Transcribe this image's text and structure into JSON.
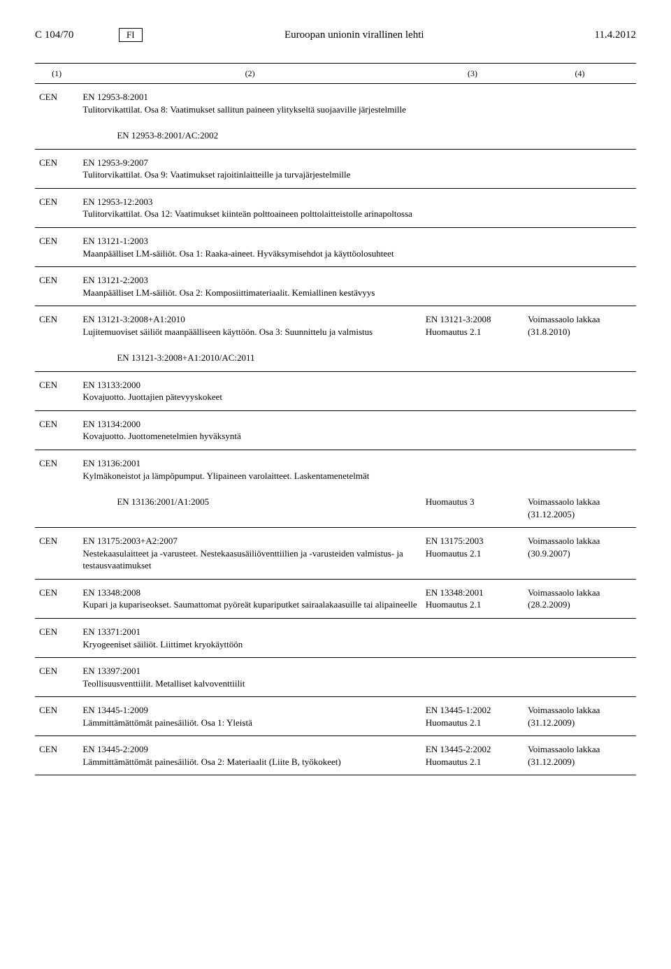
{
  "header": {
    "left": "C 104/70",
    "lang": "FI",
    "title": "Euroopan unionin virallinen lehti",
    "date": "11.4.2012"
  },
  "colheads": {
    "c1": "(1)",
    "c2": "(2)",
    "c3": "(3)",
    "c4": "(4)"
  },
  "rows": {
    "r1": {
      "org": "CEN",
      "text": "EN 12953-8:2001\nTulitorvikattilat. Osa 8: Vaatimukset sallitun paineen ylitykseltä suojaaville järjestelmille"
    },
    "r1s": {
      "text": "EN 12953-8:2001/AC:2002"
    },
    "r2": {
      "org": "CEN",
      "text": "EN 12953-9:2007\nTulitorvikattilat. Osa 9: Vaatimukset rajoitinlaitteille ja turvajärjestelmille"
    },
    "r3": {
      "org": "CEN",
      "text": "EN 12953-12:2003\nTulitorvikattilat. Osa 12: Vaatimukset kiinteän polttoaineen polttolaitteistolle arinapoltossa"
    },
    "r4": {
      "org": "CEN",
      "text": "EN 13121-1:2003\nMaanpäälliset LM-säiliöt. Osa 1: Raaka-aineet. Hyväksymisehdot ja käyttöolosuhteet"
    },
    "r5": {
      "org": "CEN",
      "text": "EN 13121-2:2003\nMaanpäälliset LM-säiliöt. Osa 2: Komposiittimateriaalit. Kemiallinen kestävyys"
    },
    "r6": {
      "org": "CEN",
      "text": "EN 13121-3:2008+A1:2010\nLujitemuoviset säiliöt maanpäälliseen käyttöön. Osa 3: Suunnittelu ja valmistus",
      "c3": "EN 13121-3:2008\nHuomautus 2.1",
      "c4": "Voimassaolo lakkaa\n(31.8.2010)"
    },
    "r6s": {
      "text": "EN 13121-3:2008+A1:2010/AC:2011"
    },
    "r7": {
      "org": "CEN",
      "text": "EN 13133:2000\nKovajuotto. Juottajien pätevyyskokeet"
    },
    "r8": {
      "org": "CEN",
      "text": "EN 13134:2000\nKovajuotto. Juottomenetelmien hyväksyntä"
    },
    "r9": {
      "org": "CEN",
      "text": "EN 13136:2001\nKylmäkoneistot ja lämpöpumput. Ylipaineen varolaitteet. Laskentamenetelmät"
    },
    "r9s": {
      "text": "EN 13136:2001/A1:2005",
      "c3": "Huomautus 3",
      "c4": "Voimassaolo lakkaa\n(31.12.2005)"
    },
    "r10": {
      "org": "CEN",
      "text": "EN 13175:2003+A2:2007\nNestekaasulaitteet ja -varusteet. Nestekaasusäiliöventtiilien ja -varusteiden valmistus- ja testausvaatimukset",
      "c3": "EN 13175:2003\nHuomautus 2.1",
      "c4": "Voimassaolo lakkaa\n(30.9.2007)"
    },
    "r11": {
      "org": "CEN",
      "text": "EN 13348:2008\nKupari ja kupariseokset. Saumattomat pyöreät kupariputket sairaalakaasuille tai alipaineelle",
      "c3": "EN 13348:2001\nHuomautus 2.1",
      "c4": "Voimassaolo lakkaa\n(28.2.2009)"
    },
    "r12": {
      "org": "CEN",
      "text": "EN 13371:2001\nKryogeeniset säiliöt. Liittimet kryokäyttöön"
    },
    "r13": {
      "org": "CEN",
      "text": "EN 13397:2001\nTeollisuusventtiilit. Metalliset kalvoventtiilit"
    },
    "r14": {
      "org": "CEN",
      "text": "EN 13445-1:2009\nLämmittämättömät painesäiliöt. Osa 1: Yleistä",
      "c3": "EN 13445-1:2002\nHuomautus 2.1",
      "c4": "Voimassaolo lakkaa\n(31.12.2009)"
    },
    "r15": {
      "org": "CEN",
      "text": "EN 13445-2:2009\nLämmittämättömät painesäiliöt. Osa 2: Materiaalit (Liite B, työkokeet)",
      "c3": "EN 13445-2:2002\nHuomautus 2.1",
      "c4": "Voimassaolo lakkaa\n(31.12.2009)"
    }
  }
}
